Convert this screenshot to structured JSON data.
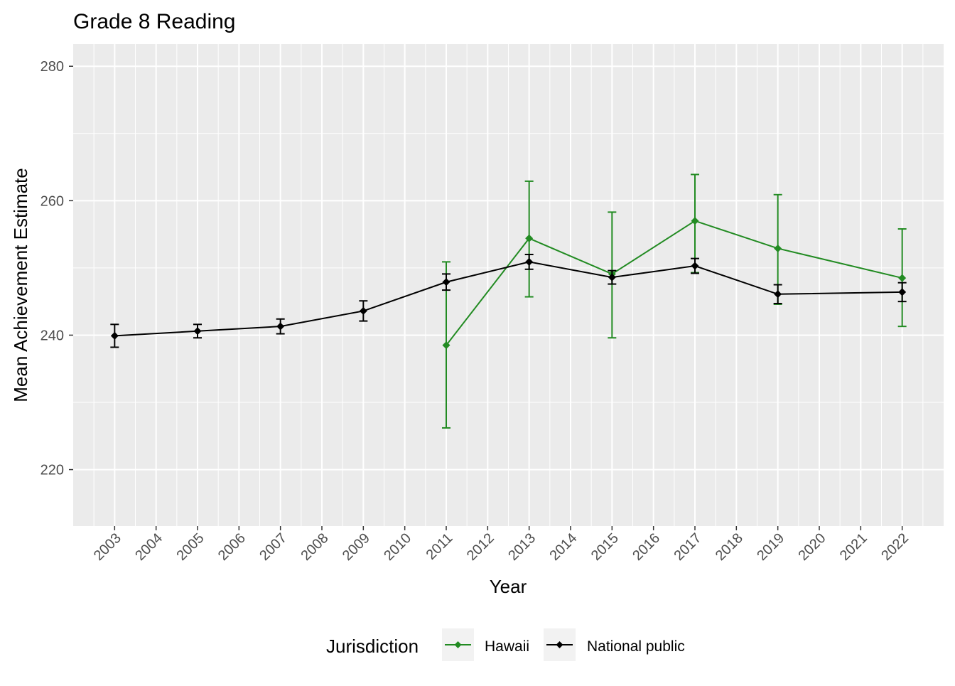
{
  "chart_data": {
    "type": "line",
    "title": "Grade 8 Reading",
    "xlabel": "Year",
    "ylabel": "Mean Achievement Estimate",
    "ylim": [
      211.6,
      283.3
    ],
    "xlim": [
      2002,
      2023
    ],
    "y_ticks": [
      220,
      240,
      260,
      280
    ],
    "x_ticks": [
      2003,
      2004,
      2005,
      2006,
      2007,
      2008,
      2009,
      2010,
      2011,
      2012,
      2013,
      2014,
      2015,
      2016,
      2017,
      2018,
      2019,
      2020,
      2021,
      2022
    ],
    "grid": true,
    "legend": {
      "title": "Jurisdiction",
      "position": "bottom"
    },
    "error_bars": true,
    "series": [
      {
        "name": "Hawaii",
        "color": "#228B22",
        "x": [
          2011,
          2013,
          2015,
          2017,
          2019,
          2022
        ],
        "y": [
          238.5,
          254.4,
          249.1,
          257.0,
          252.9,
          248.5
        ],
        "lower": [
          226.2,
          245.7,
          239.6,
          249.3,
          244.6,
          241.3
        ],
        "upper": [
          250.9,
          262.9,
          258.3,
          263.9,
          260.9,
          255.8
        ]
      },
      {
        "name": "National public",
        "color": "#000000",
        "x": [
          2003,
          2005,
          2007,
          2009,
          2011,
          2013,
          2015,
          2017,
          2019,
          2022
        ],
        "y": [
          239.9,
          240.6,
          241.3,
          243.6,
          247.9,
          250.9,
          248.6,
          250.3,
          246.1,
          246.4
        ],
        "lower": [
          238.2,
          239.6,
          240.2,
          242.1,
          246.7,
          249.8,
          247.6,
          249.2,
          244.7,
          245.0
        ],
        "upper": [
          241.6,
          241.6,
          242.4,
          245.1,
          249.1,
          252.0,
          249.6,
          251.4,
          247.5,
          247.8
        ]
      }
    ]
  }
}
